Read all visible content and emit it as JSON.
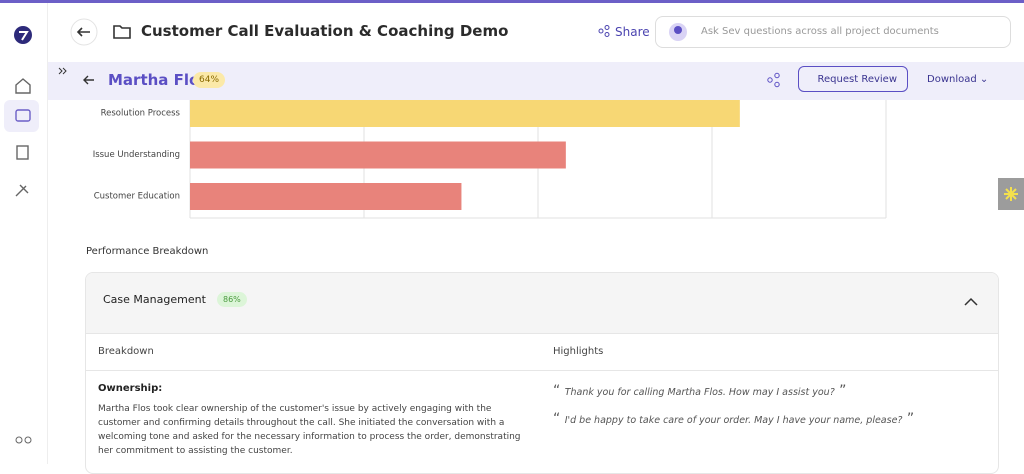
{
  "header": {
    "title": "Customer Call Evaluation & Coaching Demo",
    "share": "Share",
    "search_placeholder": "Ask Sev questions across all project documents"
  },
  "subheader": {
    "name": "Martha Flos",
    "score": "64%",
    "request_review": "Request Review",
    "download": "Download"
  },
  "chart": {
    "type": "bar",
    "orientation": "horizontal",
    "categories": [
      "Resolution Process",
      "Issue Understanding",
      "Customer Education"
    ],
    "values": [
      79,
      54,
      39
    ],
    "colors": [
      "#f7d774",
      "#e8837b",
      "#e8837b"
    ],
    "xlim": [
      0,
      100
    ],
    "xticks": [
      0,
      25,
      50,
      75,
      100
    ],
    "grid": true
  },
  "section_title": "Performance Breakdown",
  "card": {
    "title": "Case Management",
    "score": "86%",
    "columns": [
      "Breakdown",
      "Highlights"
    ],
    "rows": [
      {
        "label": "Ownership:",
        "text": "Martha Flos took clear ownership of the customer's issue by actively engaging with the customer and confirming details throughout the call. She initiated the conversation with a welcoming tone and asked for the necessary information to process the order, demonstrating her commitment to assisting the customer.",
        "highlights": [
          "Thank you for calling Martha Flos. How may I assist you?",
          "I'd be happy to take care of your order. May I have your name, please?"
        ]
      }
    ]
  }
}
